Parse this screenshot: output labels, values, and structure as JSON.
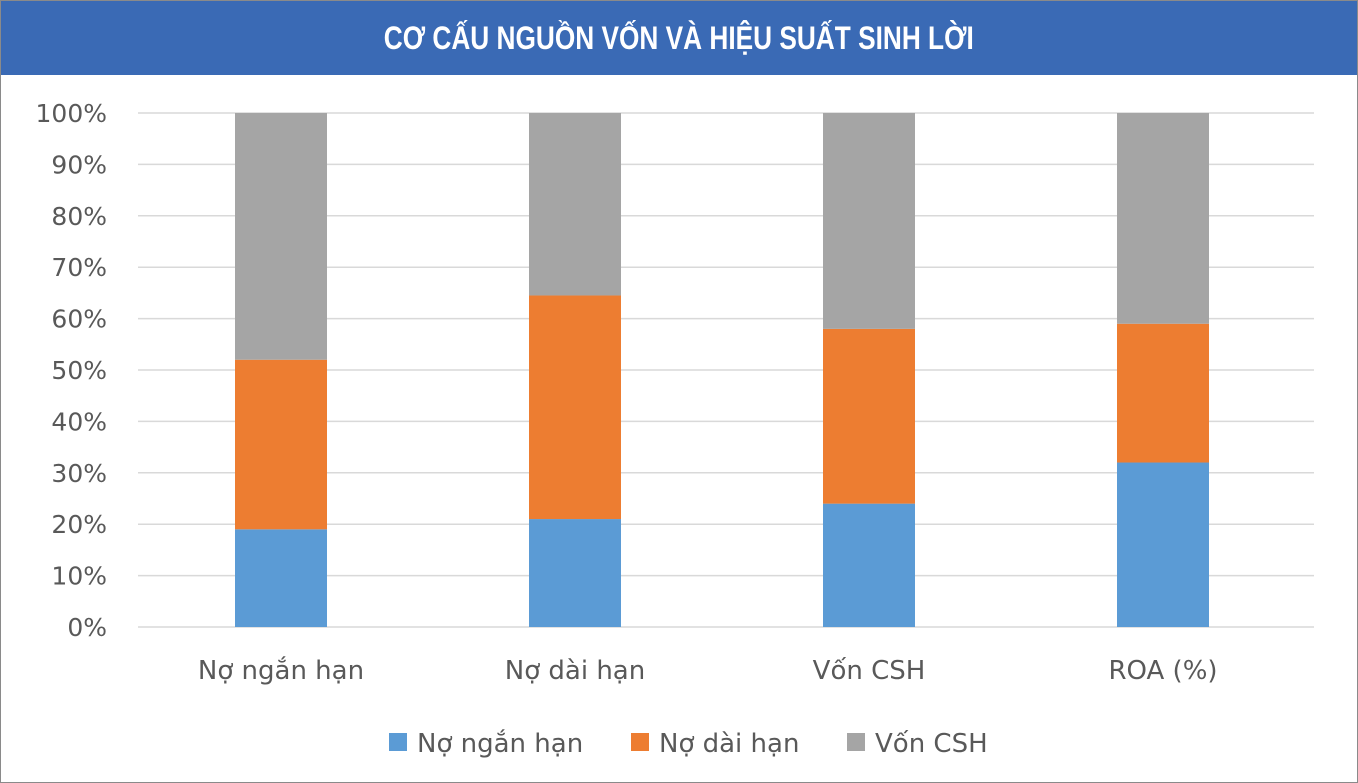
{
  "title": "CƠ CẤU NGUỒN VỐN VÀ HIỆU SUẤT SINH LỜI",
  "colors": {
    "title_bg": "#3a6ab5",
    "title_text": "#ffffff",
    "gridline": "#d9d9d9",
    "axis_text": "#595959"
  },
  "chart_data": {
    "type": "bar",
    "stacked": "percent",
    "title": "CƠ CẤU NGUỒN VỐN VÀ HIỆU SUẤT SINH LỜI",
    "categories": [
      "Nợ ngắn hạn",
      "Nợ dài hạn",
      "Vốn CSH",
      "ROA (%)"
    ],
    "series": [
      {
        "name": "Nợ ngắn hạn",
        "color": "#5b9bd5",
        "values": [
          19,
          21,
          24,
          32
        ]
      },
      {
        "name": "Nợ dài hạn",
        "color": "#ed7d31",
        "values": [
          33,
          43.5,
          34,
          27
        ]
      },
      {
        "name": "Vốn CSH",
        "color": "#a5a5a5",
        "values": [
          48,
          35.5,
          42,
          41
        ]
      }
    ],
    "ylim": [
      0,
      100
    ],
    "yticks": [
      "0%",
      "10%",
      "20%",
      "30%",
      "40%",
      "50%",
      "60%",
      "70%",
      "80%",
      "90%",
      "100%"
    ],
    "grid": true,
    "legend": "bottom"
  }
}
